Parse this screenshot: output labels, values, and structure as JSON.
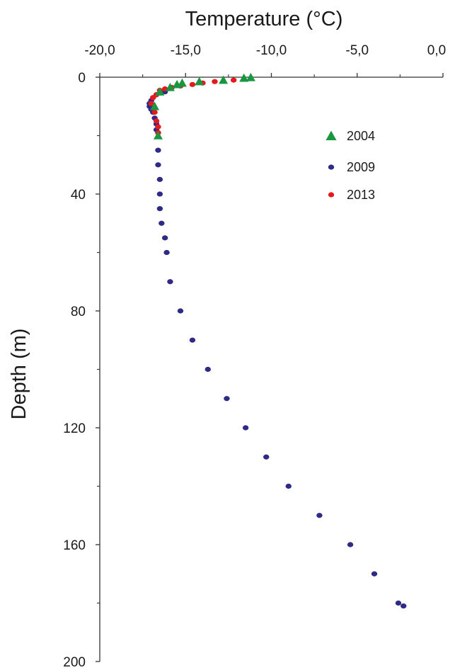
{
  "chart_data": {
    "type": "scatter",
    "xlabel": "Temperature (°C)",
    "ylabel": "Depth (m)",
    "xlim": [
      -20,
      0
    ],
    "ylim": [
      0,
      200
    ],
    "y_inverted": true,
    "x_axis_position": "top",
    "x_ticks": [
      -20,
      -15,
      -10,
      -5,
      0
    ],
    "x_tick_labels": [
      "-20,0",
      "-15,0",
      "-10,0",
      "-5,0",
      "0,0"
    ],
    "y_ticks": [
      0,
      40,
      80,
      120,
      160,
      200
    ],
    "y_tick_labels": [
      "0",
      "40",
      "80",
      "120",
      "160",
      "200"
    ],
    "legend_position": "top-right",
    "grid": false,
    "series": [
      {
        "name": "2004",
        "marker": "triangle",
        "color": "#1a9641",
        "points": [
          [
            -11.2,
            0.1
          ],
          [
            -11.6,
            0.3
          ],
          [
            -12.8,
            1.0
          ],
          [
            -14.2,
            1.5
          ],
          [
            -15.2,
            2.0
          ],
          [
            -15.5,
            2.5
          ],
          [
            -15.9,
            3.5
          ],
          [
            -16.5,
            5.0
          ],
          [
            -16.8,
            10.0
          ],
          [
            -16.6,
            20.0
          ]
        ]
      },
      {
        "name": "2009",
        "marker": "circle",
        "color": "#2e2a85",
        "points": [
          [
            -15.3,
            3.0
          ],
          [
            -16.2,
            5.0
          ],
          [
            -16.7,
            6.0
          ],
          [
            -16.9,
            7.0
          ],
          [
            -17.0,
            8.0
          ],
          [
            -17.1,
            9.0
          ],
          [
            -17.1,
            10.0
          ],
          [
            -17.0,
            11.0
          ],
          [
            -16.9,
            12.0
          ],
          [
            -16.8,
            14.0
          ],
          [
            -16.7,
            16.0
          ],
          [
            -16.7,
            18.0
          ],
          [
            -16.6,
            19.0
          ],
          [
            -16.6,
            25.0
          ],
          [
            -16.6,
            30.0
          ],
          [
            -16.5,
            35.0
          ],
          [
            -16.5,
            40.0
          ],
          [
            -16.5,
            45.0
          ],
          [
            -16.4,
            50.0
          ],
          [
            -16.2,
            55.0
          ],
          [
            -16.1,
            60.0
          ],
          [
            -15.9,
            70.0
          ],
          [
            -15.3,
            80.0
          ],
          [
            -14.6,
            90.0
          ],
          [
            -13.7,
            100.0
          ],
          [
            -12.6,
            110.0
          ],
          [
            -11.5,
            120.0
          ],
          [
            -10.3,
            130.0
          ],
          [
            -9.0,
            140.0
          ],
          [
            -7.2,
            150.0
          ],
          [
            -5.4,
            160.0
          ],
          [
            -4.0,
            170.0
          ],
          [
            -2.6,
            180.0
          ],
          [
            -2.3,
            181.0
          ]
        ]
      },
      {
        "name": "2013",
        "marker": "circle",
        "color": "#e41a1c",
        "points": [
          [
            -12.2,
            1.0
          ],
          [
            -13.3,
            1.5
          ],
          [
            -14.0,
            2.0
          ],
          [
            -14.6,
            2.5
          ],
          [
            -15.3,
            3.0
          ],
          [
            -15.8,
            3.5
          ],
          [
            -16.2,
            4.0
          ],
          [
            -16.5,
            4.5
          ],
          [
            -16.7,
            6.0
          ],
          [
            -16.9,
            7.0
          ],
          [
            -17.0,
            9.0
          ],
          [
            -16.8,
            12.0
          ],
          [
            -16.7,
            15.0
          ],
          [
            -16.6,
            17.0
          ],
          [
            -16.6,
            19.0
          ]
        ]
      }
    ]
  }
}
